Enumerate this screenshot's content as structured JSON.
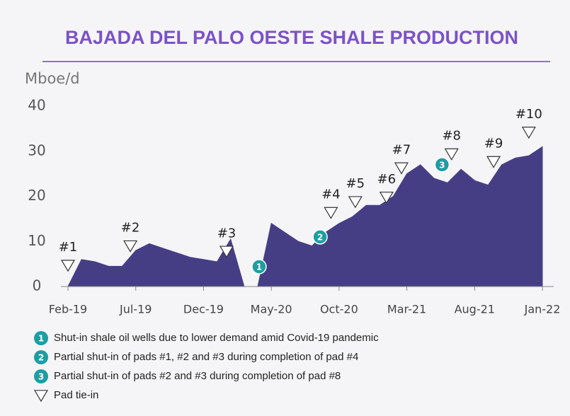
{
  "chart_data": {
    "type": "area",
    "title": "BAJADA DEL PALO OESTE SHALE PRODUCTION",
    "y_label": "Mboe/d",
    "categories": [
      "Feb-19",
      null,
      null,
      null,
      null,
      "Jul-19",
      null,
      null,
      null,
      null,
      "Dec-19",
      null,
      null,
      null,
      null,
      "May-20",
      null,
      null,
      null,
      null,
      "Oct-20",
      null,
      null,
      null,
      null,
      "Mar-21",
      null,
      null,
      null,
      null,
      "Aug-21",
      null,
      null,
      null,
      null,
      "Jan-22"
    ],
    "values": [
      0,
      6,
      5.5,
      4.5,
      4.5,
      8,
      9.5,
      8.5,
      7.5,
      6.5,
      6,
      5.5,
      10.5,
      0,
      0,
      14,
      12,
      10,
      9,
      12,
      14,
      15.5,
      18,
      18,
      20,
      25,
      27,
      24,
      23,
      26,
      23.5,
      22.5,
      27,
      28.5,
      29,
      31
    ],
    "color": "#463e85",
    "ylim": [
      0,
      40
    ],
    "yticks": [
      0,
      10,
      20,
      30,
      40
    ],
    "pads": [
      {
        "label": "#1",
        "at": 0,
        "y": 4.7
      },
      {
        "label": "#2",
        "at": 4.6,
        "y": 9
      },
      {
        "label": "#3",
        "at": 11.7,
        "y": 7.8
      },
      {
        "label": "#4",
        "at": 19.4,
        "y": 16.4
      },
      {
        "label": "#5",
        "at": 21.2,
        "y": 18.8
      },
      {
        "label": "#6",
        "at": 23.5,
        "y": 19.8
      },
      {
        "label": "#7",
        "at": 24.6,
        "y": 26.3
      },
      {
        "label": "#8",
        "at": 28.3,
        "y": 29.4
      },
      {
        "label": "#9",
        "at": 31.4,
        "y": 27.7
      },
      {
        "label": "#10",
        "at": 34,
        "y": 34.2
      }
    ],
    "events": [
      {
        "label": "1",
        "at": 14.1,
        "y": 4.4
      },
      {
        "label": "2",
        "at": 18.6,
        "y": 11
      },
      {
        "label": "3",
        "at": 27.6,
        "y": 27
      }
    ],
    "notes": [
      {
        "marker": "1",
        "text": "Shut-in shale oil wells due to lower demand amid  Covid-19 pandemic"
      },
      {
        "marker": "2",
        "text": "Partial shut-in of pads #1, #2 and #3 during completion of pad #4"
      },
      {
        "marker": "3",
        "text": "Partial shut-in of pads #2 and  #3 during completion of pad #8"
      },
      {
        "text": "Pad tie-in"
      }
    ]
  }
}
